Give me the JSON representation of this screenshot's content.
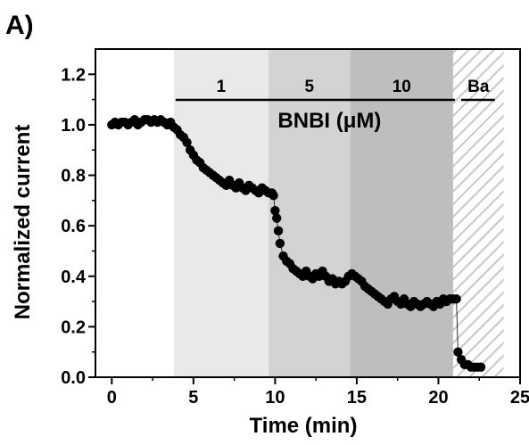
{
  "panel_label": "A)",
  "chart_data": {
    "type": "scatter",
    "title": "",
    "xlabel": "Time (min)",
    "ylabel": "Normalized current",
    "xlim": [
      -1,
      25
    ],
    "ylim": [
      0.0,
      1.3
    ],
    "xticks": [
      0,
      5,
      10,
      15,
      20,
      25
    ],
    "yticks": [
      0.0,
      0.2,
      0.4,
      0.6,
      0.8,
      1.0,
      1.2
    ],
    "xtick_labels": [
      "0",
      "5",
      "10",
      "15",
      "20",
      "25"
    ],
    "ytick_labels": [
      "0.0",
      "0.2",
      "0.4",
      "0.6",
      "0.8",
      "1.0",
      "1.2"
    ],
    "grid": false,
    "legend": "none",
    "treatment_group_label": "BNBI (μM)",
    "bands": [
      {
        "label": "1",
        "x_start": 3.8,
        "x_end": 9.6,
        "fill": "#e9e9e9"
      },
      {
        "label": "5",
        "x_start": 9.6,
        "x_end": 14.6,
        "fill": "#d3d3d3"
      },
      {
        "label": "10",
        "x_start": 14.6,
        "x_end": 20.9,
        "fill": "#bebebe"
      },
      {
        "label": "Ba",
        "x_start": 20.9,
        "x_end": 24.0,
        "fill": "hatch"
      }
    ],
    "series": [
      {
        "marker_color": "#000000",
        "points": [
          [
            0.0,
            1.0
          ],
          [
            0.2,
            1.01
          ],
          [
            0.4,
            1.0
          ],
          [
            0.6,
            1.01
          ],
          [
            0.8,
            1.01
          ],
          [
            1.0,
            1.0
          ],
          [
            1.2,
            1.01
          ],
          [
            1.4,
            1.02
          ],
          [
            1.6,
            1.0
          ],
          [
            1.8,
            1.01
          ],
          [
            2.0,
            1.02
          ],
          [
            2.2,
            1.02
          ],
          [
            2.4,
            1.01
          ],
          [
            2.6,
            1.02
          ],
          [
            2.8,
            1.01
          ],
          [
            3.0,
            1.02
          ],
          [
            3.2,
            1.01
          ],
          [
            3.4,
            1.0
          ],
          [
            3.6,
            1.01
          ],
          [
            3.8,
            0.99
          ],
          [
            4.0,
            0.98
          ],
          [
            4.2,
            0.96
          ],
          [
            4.4,
            0.95
          ],
          [
            4.6,
            0.93
          ],
          [
            4.8,
            0.9
          ],
          [
            5.0,
            0.88
          ],
          [
            5.2,
            0.86
          ],
          [
            5.4,
            0.85
          ],
          [
            5.6,
            0.83
          ],
          [
            5.8,
            0.82
          ],
          [
            6.0,
            0.81
          ],
          [
            6.2,
            0.8
          ],
          [
            6.4,
            0.79
          ],
          [
            6.6,
            0.78
          ],
          [
            6.8,
            0.77
          ],
          [
            7.0,
            0.76
          ],
          [
            7.2,
            0.78
          ],
          [
            7.4,
            0.76
          ],
          [
            7.6,
            0.75
          ],
          [
            7.8,
            0.77
          ],
          [
            8.0,
            0.75
          ],
          [
            8.2,
            0.74
          ],
          [
            8.4,
            0.76
          ],
          [
            8.6,
            0.75
          ],
          [
            8.8,
            0.74
          ],
          [
            9.0,
            0.73
          ],
          [
            9.2,
            0.75
          ],
          [
            9.4,
            0.74
          ],
          [
            9.6,
            0.73
          ],
          [
            9.8,
            0.73
          ],
          [
            9.9,
            0.72
          ],
          [
            10.0,
            0.66
          ],
          [
            10.1,
            0.63
          ],
          [
            10.2,
            0.58
          ],
          [
            10.3,
            0.53
          ],
          [
            10.5,
            0.48
          ],
          [
            10.7,
            0.46
          ],
          [
            10.9,
            0.45
          ],
          [
            11.1,
            0.43
          ],
          [
            11.3,
            0.42
          ],
          [
            11.5,
            0.41
          ],
          [
            11.7,
            0.4
          ],
          [
            11.9,
            0.42
          ],
          [
            12.1,
            0.4
          ],
          [
            12.3,
            0.39
          ],
          [
            12.5,
            0.41
          ],
          [
            12.7,
            0.4
          ],
          [
            12.9,
            0.42
          ],
          [
            13.1,
            0.4
          ],
          [
            13.3,
            0.38
          ],
          [
            13.5,
            0.39
          ],
          [
            13.7,
            0.37
          ],
          [
            13.9,
            0.38
          ],
          [
            14.1,
            0.37
          ],
          [
            14.3,
            0.38
          ],
          [
            14.5,
            0.4
          ],
          [
            14.7,
            0.41
          ],
          [
            14.9,
            0.4
          ],
          [
            15.1,
            0.39
          ],
          [
            15.3,
            0.38
          ],
          [
            15.5,
            0.36
          ],
          [
            15.7,
            0.35
          ],
          [
            15.9,
            0.34
          ],
          [
            16.1,
            0.33
          ],
          [
            16.3,
            0.32
          ],
          [
            16.5,
            0.31
          ],
          [
            16.7,
            0.3
          ],
          [
            16.9,
            0.29
          ],
          [
            17.1,
            0.31
          ],
          [
            17.3,
            0.32
          ],
          [
            17.5,
            0.3
          ],
          [
            17.7,
            0.29
          ],
          [
            17.9,
            0.31
          ],
          [
            18.1,
            0.29
          ],
          [
            18.3,
            0.28
          ],
          [
            18.5,
            0.3
          ],
          [
            18.7,
            0.29
          ],
          [
            18.9,
            0.28
          ],
          [
            19.1,
            0.29
          ],
          [
            19.3,
            0.3
          ],
          [
            19.5,
            0.29
          ],
          [
            19.7,
            0.28
          ],
          [
            19.9,
            0.3
          ],
          [
            20.1,
            0.29
          ],
          [
            20.3,
            0.31
          ],
          [
            20.5,
            0.3
          ],
          [
            20.7,
            0.31
          ],
          [
            20.9,
            0.31
          ],
          [
            21.1,
            0.31
          ],
          [
            21.2,
            0.1
          ],
          [
            21.4,
            0.07
          ],
          [
            21.6,
            0.05
          ],
          [
            21.8,
            0.05
          ],
          [
            22.0,
            0.04
          ],
          [
            22.2,
            0.04
          ],
          [
            22.4,
            0.04
          ],
          [
            22.6,
            0.04
          ]
        ]
      }
    ]
  }
}
